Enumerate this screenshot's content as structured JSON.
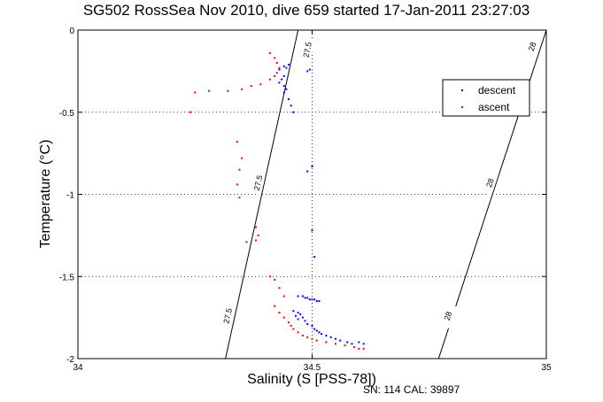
{
  "chart_data": {
    "type": "scatter",
    "title": "SG502 RossSea Nov 2010, dive 659 started 17-Jan-2011 23:27:03",
    "xlabel": "Salinity (S [PSS-78])",
    "ylabel": "Temperature (°C)",
    "xlim": [
      34,
      35
    ],
    "ylim": [
      -2,
      0
    ],
    "xticks": [
      "34",
      "34.5",
      "35"
    ],
    "yticks": [
      "0",
      "-0.5",
      "-1",
      "-1.5",
      "-2"
    ],
    "grid": "dotted",
    "legend_position": "top-right",
    "footer": "SN: 114  CAL: 39897",
    "density_contours": [
      {
        "label": "27.5",
        "points": [
          [
            34.47,
            0
          ],
          [
            34.315,
            -2
          ]
        ],
        "label_positions": [
          [
            34.49,
            -0.12
          ],
          [
            34.385,
            -0.93
          ],
          [
            34.32,
            -1.74
          ]
        ]
      },
      {
        "label": "28",
        "points": [
          [
            35.0,
            0
          ],
          [
            34.77,
            -2
          ]
        ],
        "label_positions": [
          [
            34.97,
            -0.1
          ],
          [
            34.88,
            -0.93
          ],
          [
            34.79,
            -1.74
          ]
        ]
      }
    ],
    "series": [
      {
        "name": "descent",
        "color": "#0000ff",
        "points": [
          [
            34.495,
            -0.24
          ],
          [
            34.49,
            -0.25
          ],
          [
            34.45,
            -0.21
          ],
          [
            34.44,
            -0.22
          ],
          [
            34.43,
            -0.24
          ],
          [
            34.445,
            -0.23
          ],
          [
            34.44,
            -0.28
          ],
          [
            34.435,
            -0.3
          ],
          [
            34.43,
            -0.32
          ],
          [
            34.44,
            -0.34
          ],
          [
            34.445,
            -0.36
          ],
          [
            34.44,
            -0.38
          ],
          [
            34.45,
            -0.42
          ],
          [
            34.455,
            -0.46
          ],
          [
            34.46,
            -0.5
          ],
          [
            34.5,
            -0.83
          ],
          [
            34.49,
            -0.86
          ],
          [
            34.5,
            -1.22
          ],
          [
            34.505,
            -1.38
          ],
          [
            34.47,
            -1.62
          ],
          [
            34.48,
            -1.62
          ],
          [
            34.485,
            -1.63
          ],
          [
            34.49,
            -1.63
          ],
          [
            34.495,
            -1.64
          ],
          [
            34.5,
            -1.64
          ],
          [
            34.505,
            -1.64
          ],
          [
            34.51,
            -1.65
          ],
          [
            34.515,
            -1.65
          ],
          [
            34.46,
            -1.71
          ],
          [
            34.47,
            -1.72
          ],
          [
            34.465,
            -1.74
          ],
          [
            34.475,
            -1.73
          ],
          [
            34.48,
            -1.75
          ],
          [
            34.47,
            -1.76
          ],
          [
            34.485,
            -1.77
          ],
          [
            34.49,
            -1.79
          ],
          [
            34.5,
            -1.8
          ],
          [
            34.505,
            -1.82
          ],
          [
            34.51,
            -1.83
          ],
          [
            34.515,
            -1.84
          ],
          [
            34.52,
            -1.85
          ],
          [
            34.53,
            -1.86
          ],
          [
            34.54,
            -1.87
          ],
          [
            34.55,
            -1.88
          ],
          [
            34.56,
            -1.89
          ],
          [
            34.575,
            -1.9
          ],
          [
            34.585,
            -1.91
          ],
          [
            34.6,
            -1.9
          ],
          [
            34.61,
            -1.91
          ]
        ]
      },
      {
        "name": "ascent",
        "color": "#ff0000",
        "points": [
          [
            34.41,
            -0.14
          ],
          [
            34.42,
            -0.17
          ],
          [
            34.425,
            -0.2
          ],
          [
            34.43,
            -0.23
          ],
          [
            34.425,
            -0.26
          ],
          [
            34.42,
            -0.28
          ],
          [
            34.41,
            -0.3
          ],
          [
            34.39,
            -0.33
          ],
          [
            34.37,
            -0.34
          ],
          [
            34.35,
            -0.36
          ],
          [
            34.32,
            -0.37
          ],
          [
            34.28,
            -0.37
          ],
          [
            34.25,
            -0.38
          ],
          [
            34.24,
            -0.5
          ],
          [
            34.34,
            -0.68
          ],
          [
            34.35,
            -0.78
          ],
          [
            34.345,
            -0.85
          ],
          [
            34.34,
            -0.94
          ],
          [
            34.345,
            -1.02
          ],
          [
            34.38,
            -1.2
          ],
          [
            34.385,
            -1.25
          ],
          [
            34.38,
            -1.28
          ],
          [
            34.36,
            -1.29
          ],
          [
            34.41,
            -1.5
          ],
          [
            34.42,
            -1.52
          ],
          [
            34.43,
            -1.57
          ],
          [
            34.44,
            -1.62
          ],
          [
            34.42,
            -1.68
          ],
          [
            34.43,
            -1.72
          ],
          [
            34.44,
            -1.75
          ],
          [
            34.45,
            -1.78
          ],
          [
            34.455,
            -1.8
          ],
          [
            34.46,
            -1.82
          ],
          [
            34.47,
            -1.84
          ],
          [
            34.48,
            -1.86
          ],
          [
            34.49,
            -1.87
          ],
          [
            34.5,
            -1.88
          ],
          [
            34.51,
            -1.89
          ],
          [
            34.53,
            -1.9
          ],
          [
            34.55,
            -1.91
          ],
          [
            34.57,
            -1.92
          ],
          [
            34.59,
            -1.93
          ],
          [
            34.6,
            -1.94
          ],
          [
            34.61,
            -1.94
          ]
        ]
      }
    ]
  }
}
